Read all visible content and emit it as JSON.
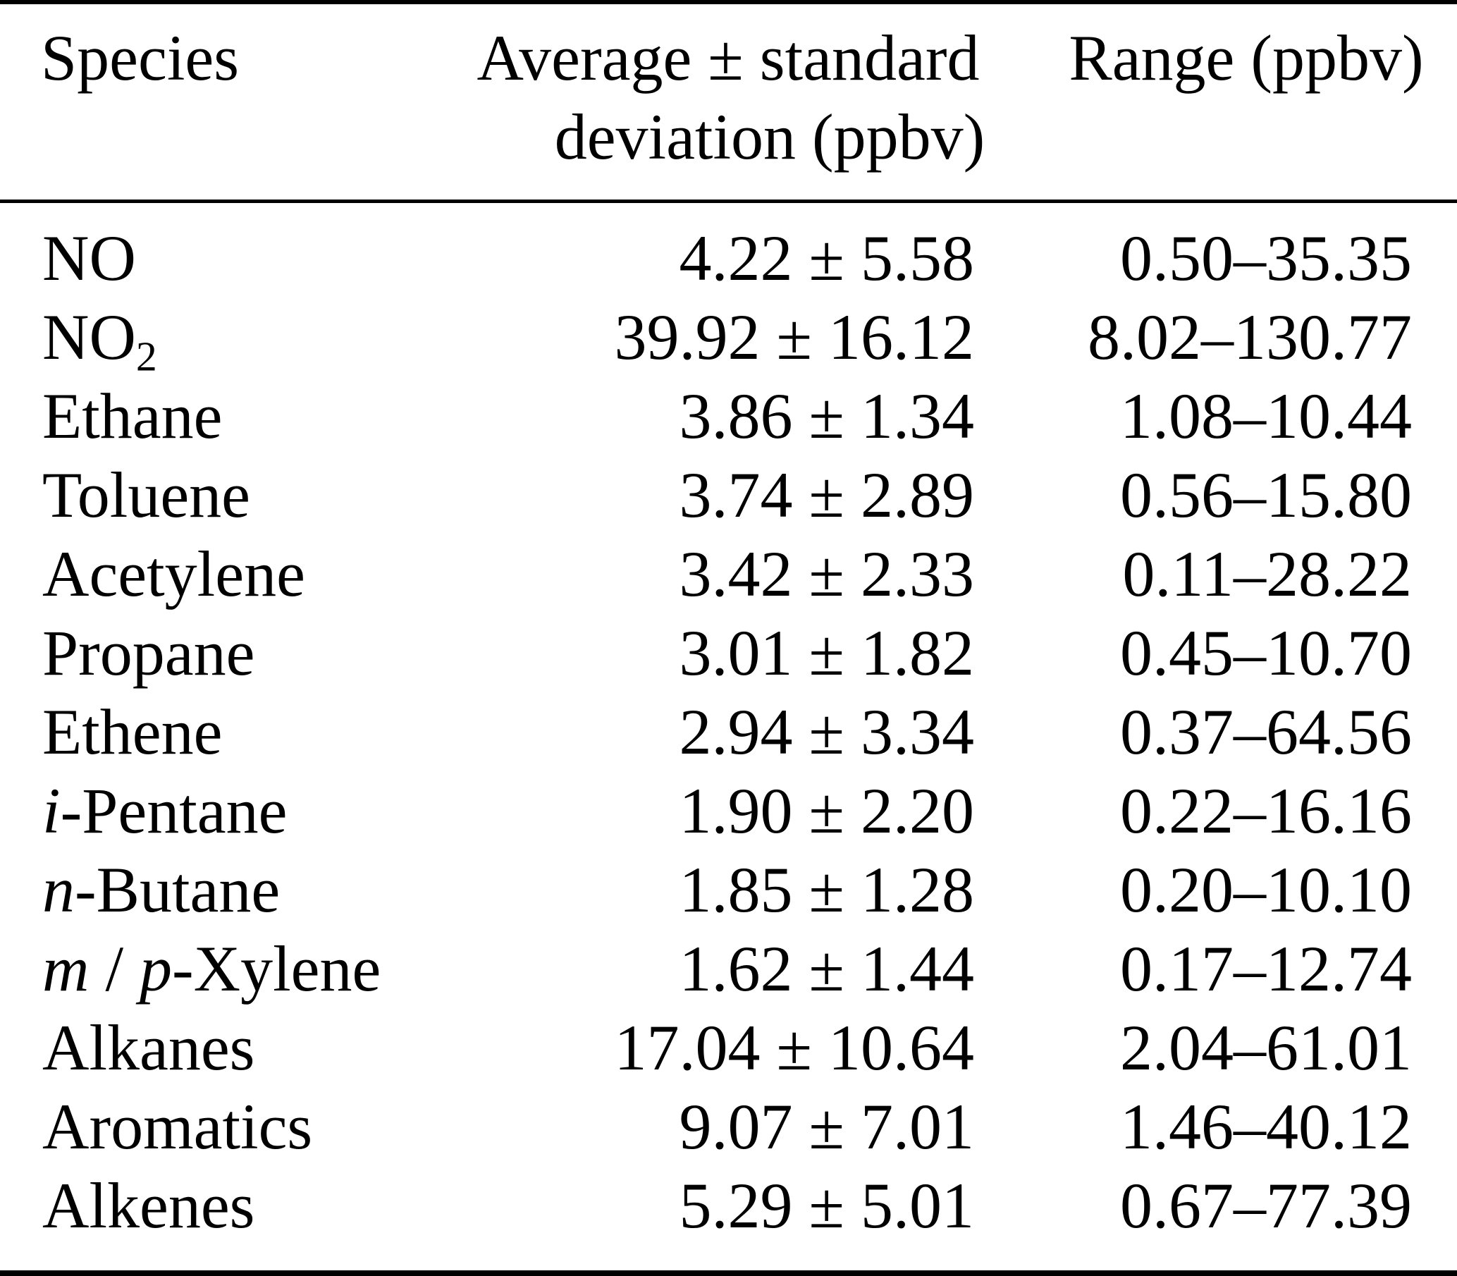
{
  "page": {
    "background_color": "#ffffff",
    "text_color": "#000000",
    "rule_color": "#000000"
  },
  "table": {
    "headers": {
      "species": "Species",
      "average_line1": "Average ± standard",
      "average_line2": "deviation (ppbv)",
      "range": "Range (ppbv)"
    },
    "rows": [
      {
        "species_parts": [
          {
            "text": "NO"
          }
        ],
        "average": "4.22 ± 5.58",
        "range": "0.50–35.35"
      },
      {
        "species_parts": [
          {
            "text": "NO"
          },
          {
            "text": "2",
            "style": "sub"
          }
        ],
        "average": "39.92 ± 16.12",
        "range": "8.02–130.77"
      },
      {
        "species_parts": [
          {
            "text": "Ethane"
          }
        ],
        "average": "3.86 ± 1.34",
        "range": "1.08–10.44"
      },
      {
        "species_parts": [
          {
            "text": "Toluene"
          }
        ],
        "average": "3.74 ± 2.89",
        "range": "0.56–15.80"
      },
      {
        "species_parts": [
          {
            "text": "Acetylene"
          }
        ],
        "average": "3.42 ± 2.33",
        "range": "0.11–28.22"
      },
      {
        "species_parts": [
          {
            "text": "Propane"
          }
        ],
        "average": "3.01 ± 1.82",
        "range": "0.45–10.70"
      },
      {
        "species_parts": [
          {
            "text": "Ethene"
          }
        ],
        "average": "2.94 ± 3.34",
        "range": "0.37–64.56"
      },
      {
        "species_parts": [
          {
            "text": "i",
            "style": "italic"
          },
          {
            "text": "-Pentane"
          }
        ],
        "average": "1.90 ± 2.20",
        "range": "0.22–16.16"
      },
      {
        "species_parts": [
          {
            "text": "n",
            "style": "italic"
          },
          {
            "text": "-Butane"
          }
        ],
        "average": "1.85 ± 1.28",
        "range": "0.20–10.10"
      },
      {
        "species_parts": [
          {
            "text": "m",
            "style": "italic"
          },
          {
            "text": " / "
          },
          {
            "text": "p",
            "style": "italic"
          },
          {
            "text": "-Xylene"
          }
        ],
        "average": "1.62 ± 1.44",
        "range": "0.17–12.74"
      },
      {
        "species_parts": [
          {
            "text": "Alkanes"
          }
        ],
        "average": "17.04 ± 10.64",
        "range": "2.04–61.01"
      },
      {
        "species_parts": [
          {
            "text": "Aromatics"
          }
        ],
        "average": "9.07 ± 7.01",
        "range": "1.46–40.12"
      },
      {
        "species_parts": [
          {
            "text": "Alkenes"
          }
        ],
        "average": "5.29 ± 5.01",
        "range": "0.67–77.39"
      }
    ]
  }
}
